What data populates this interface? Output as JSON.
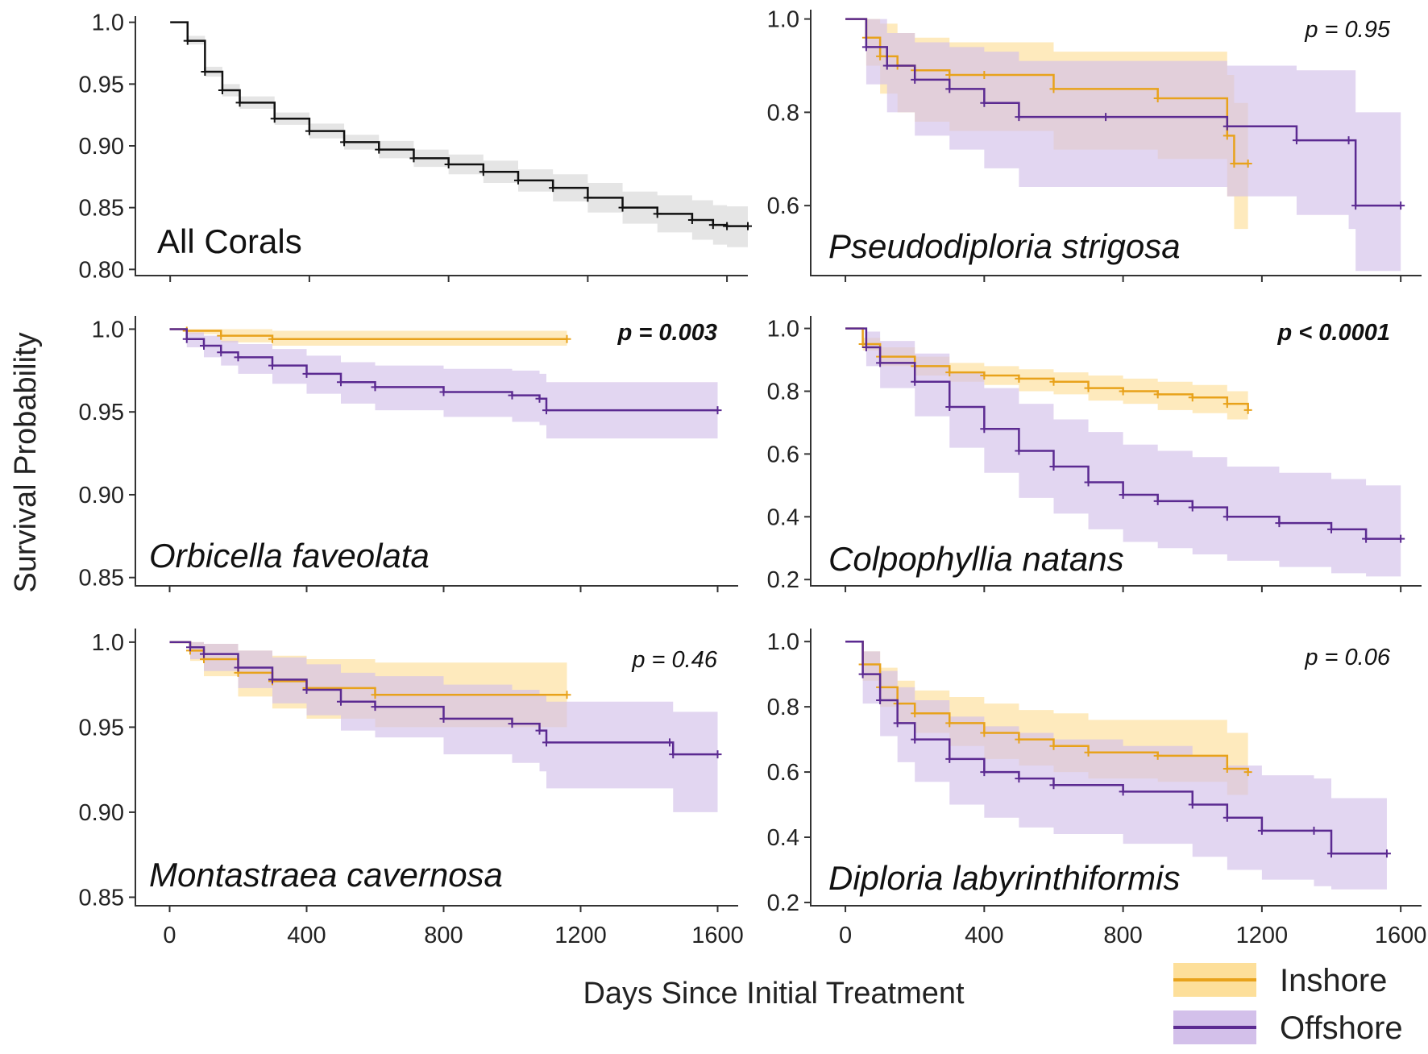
{
  "figure": {
    "ylabel": "Survival Probability",
    "xlabel": "Days Since Initial Treatment",
    "legend": [
      {
        "name": "Inshore",
        "line_color": "#E8A21B",
        "band_color": "#FDDF9A"
      },
      {
        "name": "Offshore",
        "line_color": "#5B2A91",
        "band_color": "#D3C0EA"
      }
    ],
    "all_color": "#111111",
    "all_band_color": "#E5E5E5"
  },
  "chart_data": [
    {
      "type": "line",
      "id": "all",
      "title": "All Corals",
      "title_italic": false,
      "pvalue": null,
      "xlim": [
        -100,
        1660
      ],
      "ylim": [
        0.795,
        1.005
      ],
      "yticks": [
        "0.80",
        "0.85",
        "0.90",
        "0.95",
        "1.0"
      ],
      "ytick_values": [
        0.8,
        0.85,
        0.9,
        0.95,
        1.0
      ],
      "xticks": [],
      "series": [
        {
          "name": "All",
          "color_key": "all",
          "x": [
            0,
            50,
            100,
            150,
            200,
            300,
            400,
            500,
            600,
            700,
            800,
            900,
            1000,
            1100,
            1200,
            1300,
            1400,
            1500,
            1560,
            1600,
            1660
          ],
          "y": [
            1.0,
            0.985,
            0.96,
            0.945,
            0.935,
            0.922,
            0.912,
            0.903,
            0.897,
            0.89,
            0.885,
            0.879,
            0.872,
            0.866,
            0.858,
            0.85,
            0.845,
            0.84,
            0.836,
            0.835,
            0.835
          ],
          "lower": [
            1.0,
            0.982,
            0.956,
            0.94,
            0.93,
            0.917,
            0.906,
            0.897,
            0.89,
            0.883,
            0.877,
            0.87,
            0.863,
            0.855,
            0.846,
            0.837,
            0.83,
            0.824,
            0.82,
            0.818,
            0.818
          ],
          "upper": [
            1.0,
            0.989,
            0.964,
            0.95,
            0.94,
            0.927,
            0.918,
            0.909,
            0.904,
            0.897,
            0.893,
            0.888,
            0.881,
            0.877,
            0.87,
            0.863,
            0.86,
            0.856,
            0.852,
            0.851,
            0.851
          ]
        }
      ]
    },
    {
      "type": "line",
      "id": "pstrig",
      "title": "Pseudodiploria strigosa",
      "title_italic": true,
      "pvalue": "p = 0.95",
      "pvalue_bold": false,
      "xlim": [
        -100,
        1660
      ],
      "ylim": [
        0.45,
        1.02
      ],
      "yticks": [
        "0.6",
        "0.8",
        "1.0"
      ],
      "ytick_values": [
        0.6,
        0.8,
        1.0
      ],
      "xticks": [],
      "series": [
        {
          "name": "Inshore",
          "color_key": "inshore",
          "x": [
            0,
            60,
            100,
            150,
            200,
            300,
            400,
            600,
            900,
            1100,
            1120,
            1160
          ],
          "y": [
            1.0,
            0.96,
            0.92,
            0.9,
            0.89,
            0.88,
            0.88,
            0.85,
            0.83,
            0.75,
            0.69,
            0.69
          ],
          "lower": [
            1.0,
            0.9,
            0.84,
            0.8,
            0.78,
            0.76,
            0.76,
            0.72,
            0.7,
            0.62,
            0.55,
            0.55
          ],
          "upper": [
            1.0,
            1.0,
            0.99,
            0.97,
            0.96,
            0.95,
            0.95,
            0.93,
            0.93,
            0.88,
            0.82,
            0.82
          ]
        },
        {
          "name": "Offshore",
          "color_key": "offshore",
          "x": [
            0,
            60,
            120,
            200,
            300,
            400,
            500,
            750,
            1100,
            1300,
            1450,
            1470,
            1600
          ],
          "y": [
            1.0,
            0.94,
            0.9,
            0.87,
            0.85,
            0.82,
            0.79,
            0.79,
            0.77,
            0.74,
            0.74,
            0.6,
            0.6
          ],
          "lower": [
            1.0,
            0.86,
            0.8,
            0.75,
            0.72,
            0.68,
            0.64,
            0.64,
            0.62,
            0.58,
            0.55,
            0.46,
            0.46
          ],
          "upper": [
            1.0,
            1.0,
            0.97,
            0.95,
            0.94,
            0.93,
            0.91,
            0.91,
            0.9,
            0.89,
            0.89,
            0.8,
            0.8
          ]
        }
      ]
    },
    {
      "type": "line",
      "id": "ofav",
      "title": "Orbicella faveolata",
      "title_italic": true,
      "pvalue": "p = 0.003",
      "pvalue_bold": true,
      "xlim": [
        -100,
        1660
      ],
      "ylim": [
        0.845,
        1.008
      ],
      "yticks": [
        "0.85",
        "0.90",
        "0.95",
        "1.0"
      ],
      "ytick_values": [
        0.85,
        0.9,
        0.95,
        1.0
      ],
      "xticks": [],
      "series": [
        {
          "name": "Inshore",
          "color_key": "inshore",
          "x": [
            0,
            50,
            150,
            300,
            1160
          ],
          "y": [
            1.0,
            0.999,
            0.996,
            0.994,
            0.994
          ],
          "lower": [
            1.0,
            0.997,
            0.992,
            0.99,
            0.99
          ],
          "upper": [
            1.0,
            1.0,
            1.0,
            0.999,
            0.999
          ]
        },
        {
          "name": "Offshore",
          "color_key": "offshore",
          "x": [
            0,
            50,
            100,
            150,
            200,
            300,
            400,
            500,
            600,
            800,
            1000,
            1080,
            1100,
            1600
          ],
          "y": [
            1.0,
            0.994,
            0.99,
            0.986,
            0.983,
            0.978,
            0.973,
            0.968,
            0.965,
            0.962,
            0.96,
            0.958,
            0.951,
            0.951
          ],
          "lower": [
            1.0,
            0.989,
            0.983,
            0.978,
            0.973,
            0.967,
            0.961,
            0.955,
            0.951,
            0.947,
            0.944,
            0.942,
            0.934,
            0.934
          ],
          "upper": [
            1.0,
            0.998,
            0.996,
            0.993,
            0.991,
            0.988,
            0.984,
            0.98,
            0.978,
            0.976,
            0.975,
            0.973,
            0.968,
            0.968
          ]
        }
      ]
    },
    {
      "type": "line",
      "id": "cnat",
      "title": "Colpophyllia natans",
      "title_italic": true,
      "pvalue": "p < 0.0001",
      "pvalue_bold": true,
      "xlim": [
        -100,
        1660
      ],
      "ylim": [
        0.18,
        1.04
      ],
      "yticks": [
        "0.2",
        "0.4",
        "0.6",
        "0.8",
        "1.0"
      ],
      "ytick_values": [
        0.2,
        0.4,
        0.6,
        0.8,
        1.0
      ],
      "xticks": [],
      "series": [
        {
          "name": "Inshore",
          "color_key": "inshore",
          "x": [
            0,
            50,
            100,
            200,
            300,
            400,
            500,
            600,
            700,
            800,
            900,
            1000,
            1100,
            1160
          ],
          "y": [
            1.0,
            0.95,
            0.91,
            0.88,
            0.86,
            0.85,
            0.84,
            0.83,
            0.81,
            0.8,
            0.79,
            0.78,
            0.76,
            0.74
          ],
          "lower": [
            1.0,
            0.93,
            0.88,
            0.85,
            0.83,
            0.82,
            0.8,
            0.79,
            0.77,
            0.76,
            0.74,
            0.73,
            0.71,
            0.69
          ],
          "upper": [
            1.0,
            0.97,
            0.94,
            0.91,
            0.89,
            0.88,
            0.87,
            0.86,
            0.85,
            0.84,
            0.83,
            0.82,
            0.8,
            0.79
          ]
        },
        {
          "name": "Offshore",
          "color_key": "offshore",
          "x": [
            0,
            60,
            100,
            200,
            300,
            400,
            500,
            600,
            700,
            800,
            900,
            1000,
            1100,
            1250,
            1400,
            1500,
            1600
          ],
          "y": [
            1.0,
            0.94,
            0.89,
            0.83,
            0.75,
            0.68,
            0.61,
            0.56,
            0.51,
            0.47,
            0.45,
            0.43,
            0.4,
            0.38,
            0.36,
            0.33,
            0.33
          ],
          "lower": [
            1.0,
            0.88,
            0.81,
            0.72,
            0.62,
            0.54,
            0.46,
            0.41,
            0.36,
            0.32,
            0.3,
            0.28,
            0.26,
            0.24,
            0.22,
            0.21,
            0.21
          ],
          "upper": [
            1.0,
            0.99,
            0.96,
            0.92,
            0.86,
            0.81,
            0.76,
            0.71,
            0.67,
            0.63,
            0.61,
            0.59,
            0.56,
            0.54,
            0.52,
            0.5,
            0.5
          ]
        }
      ]
    },
    {
      "type": "line",
      "id": "mcav",
      "title": "Montastraea cavernosa",
      "title_italic": true,
      "pvalue": "p = 0.46",
      "pvalue_bold": false,
      "xlim": [
        -100,
        1660
      ],
      "ylim": [
        0.845,
        1.008
      ],
      "yticks": [
        "0.85",
        "0.90",
        "0.95",
        "1.0"
      ],
      "ytick_values": [
        0.85,
        0.9,
        0.95,
        1.0
      ],
      "xticks": [
        "0",
        "400",
        "800",
        "1200",
        "1600"
      ],
      "xtick_values": [
        0,
        400,
        800,
        1200,
        1600
      ],
      "series": [
        {
          "name": "Inshore",
          "color_key": "inshore",
          "x": [
            0,
            60,
            100,
            200,
            300,
            400,
            600,
            1160
          ],
          "y": [
            1.0,
            0.995,
            0.99,
            0.982,
            0.977,
            0.973,
            0.969,
            0.969
          ],
          "lower": [
            1.0,
            0.989,
            0.98,
            0.968,
            0.961,
            0.955,
            0.95,
            0.95
          ],
          "upper": [
            1.0,
            1.0,
            0.999,
            0.995,
            0.992,
            0.99,
            0.988,
            0.988
          ]
        },
        {
          "name": "Offshore",
          "color_key": "offshore",
          "x": [
            0,
            60,
            100,
            200,
            300,
            400,
            500,
            600,
            800,
            1000,
            1080,
            1100,
            1460,
            1470,
            1600
          ],
          "y": [
            1.0,
            0.997,
            0.993,
            0.985,
            0.978,
            0.972,
            0.965,
            0.962,
            0.955,
            0.952,
            0.948,
            0.941,
            0.941,
            0.934,
            0.934
          ],
          "lower": [
            1.0,
            0.99,
            0.983,
            0.973,
            0.964,
            0.957,
            0.948,
            0.944,
            0.934,
            0.929,
            0.924,
            0.914,
            0.914,
            0.9,
            0.9
          ],
          "upper": [
            1.0,
            1.0,
            0.999,
            0.995,
            0.991,
            0.987,
            0.982,
            0.98,
            0.975,
            0.972,
            0.969,
            0.965,
            0.965,
            0.959,
            0.959
          ]
        }
      ]
    },
    {
      "type": "line",
      "id": "dlab",
      "title": "Diploria labyrinthiformis",
      "title_italic": true,
      "pvalue": "p = 0.06",
      "pvalue_bold": false,
      "xlim": [
        -100,
        1660
      ],
      "ylim": [
        0.19,
        1.04
      ],
      "yticks": [
        "0.2",
        "0.4",
        "0.6",
        "0.8",
        "1.0"
      ],
      "ytick_values": [
        0.2,
        0.4,
        0.6,
        0.8,
        1.0
      ],
      "xticks": [
        "0",
        "400",
        "800",
        "1200",
        "1600"
      ],
      "xtick_values": [
        0,
        400,
        800,
        1200,
        1600
      ],
      "series": [
        {
          "name": "Inshore",
          "color_key": "inshore",
          "x": [
            0,
            50,
            100,
            150,
            200,
            300,
            400,
            500,
            600,
            700,
            900,
            1100,
            1160
          ],
          "y": [
            1.0,
            0.93,
            0.86,
            0.81,
            0.78,
            0.75,
            0.72,
            0.7,
            0.68,
            0.66,
            0.65,
            0.61,
            0.6
          ],
          "lower": [
            1.0,
            0.88,
            0.8,
            0.75,
            0.72,
            0.68,
            0.64,
            0.62,
            0.6,
            0.58,
            0.57,
            0.53,
            0.52
          ],
          "upper": [
            1.0,
            0.97,
            0.92,
            0.88,
            0.85,
            0.83,
            0.81,
            0.79,
            0.78,
            0.76,
            0.76,
            0.72,
            0.72
          ]
        },
        {
          "name": "Offshore",
          "color_key": "offshore",
          "x": [
            0,
            50,
            100,
            150,
            200,
            300,
            400,
            500,
            600,
            800,
            1000,
            1100,
            1200,
            1350,
            1400,
            1560
          ],
          "y": [
            1.0,
            0.9,
            0.82,
            0.75,
            0.7,
            0.64,
            0.6,
            0.58,
            0.56,
            0.54,
            0.5,
            0.46,
            0.42,
            0.42,
            0.35,
            0.35
          ],
          "lower": [
            1.0,
            0.81,
            0.71,
            0.63,
            0.57,
            0.5,
            0.46,
            0.43,
            0.41,
            0.38,
            0.34,
            0.3,
            0.27,
            0.25,
            0.24,
            0.24
          ],
          "upper": [
            1.0,
            0.97,
            0.91,
            0.86,
            0.82,
            0.77,
            0.74,
            0.72,
            0.7,
            0.68,
            0.65,
            0.62,
            0.59,
            0.58,
            0.52,
            0.52
          ]
        }
      ]
    }
  ]
}
